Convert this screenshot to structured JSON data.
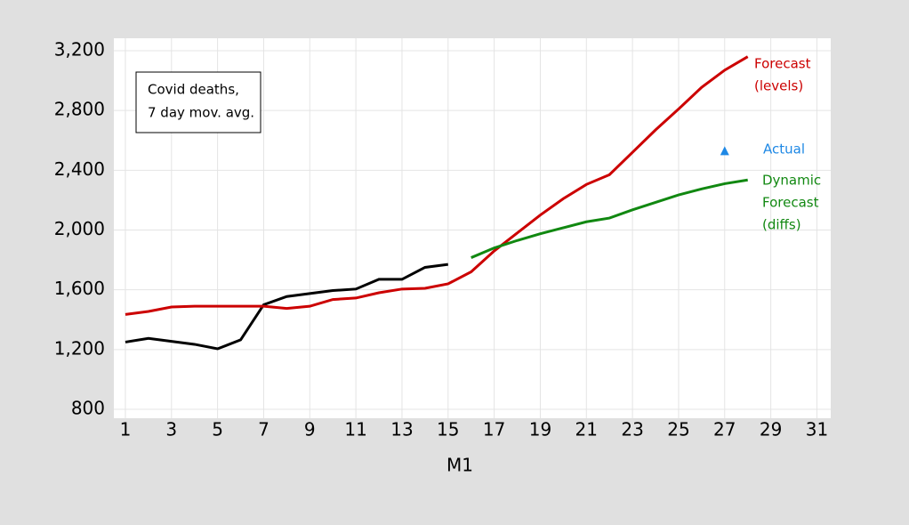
{
  "chart_data": {
    "type": "line",
    "xlabel": "M1",
    "annotation": [
      "Covid deaths,",
      "7 day mov. avg."
    ],
    "xlim": [
      0.5,
      31.6
    ],
    "ylim": [
      800,
      3200
    ],
    "xticks": [
      1,
      3,
      5,
      7,
      9,
      11,
      13,
      15,
      17,
      19,
      21,
      23,
      25,
      27,
      29,
      31
    ],
    "yticks": [
      800,
      {
        "value": 1200,
        "label": "1,200"
      },
      {
        "value": 1600,
        "label": "1,600"
      },
      {
        "value": 2000,
        "label": "2,000"
      },
      {
        "value": 2400,
        "label": "2,400"
      },
      {
        "value": 2800,
        "label": "2,800"
      },
      {
        "value": 3200,
        "label": "3,200"
      }
    ],
    "grid": true,
    "series": [
      {
        "color": "#000000",
        "kind": "line",
        "x": [
          1,
          2,
          3,
          4,
          5,
          6,
          7,
          8,
          9,
          10,
          11,
          12,
          13,
          14,
          15
        ],
        "values": [
          1250,
          1275,
          1255,
          1235,
          1205,
          1265,
          1500,
          1555,
          1575,
          1595,
          1605,
          1670,
          1670,
          1750,
          1770
        ]
      },
      {
        "name": [
          "Forecast",
          "(levels)"
        ],
        "color": "#cc0000",
        "kind": "line",
        "x": [
          1,
          2,
          3,
          4,
          5,
          6,
          7,
          8,
          9,
          10,
          11,
          12,
          13,
          14,
          15,
          16,
          17,
          18,
          19,
          20,
          21,
          22,
          23,
          24,
          25,
          26,
          27,
          28
        ],
        "values": [
          1435,
          1455,
          1485,
          1490,
          1490,
          1490,
          1490,
          1475,
          1490,
          1535,
          1545,
          1580,
          1605,
          1610,
          1640,
          1720,
          1860,
          1980,
          2100,
          2210,
          2305,
          2370,
          2520,
          2670,
          2810,
          2955,
          3070,
          3160
        ]
      },
      {
        "name": [
          "Actual"
        ],
        "color": "#1e88e5",
        "kind": "scatter",
        "x": [
          27
        ],
        "values": [
          2525
        ]
      },
      {
        "name": [
          "Dynamic",
          "Forecast",
          "(diffs)"
        ],
        "color": "#118811",
        "kind": "line",
        "x": [
          16,
          17,
          18,
          19,
          20,
          21,
          22,
          23,
          24,
          25,
          26,
          27,
          28
        ],
        "values": [
          1815,
          1880,
          1930,
          1975,
          2015,
          2055,
          2080,
          2135,
          2185,
          2235,
          2275,
          2310,
          2335
        ]
      }
    ]
  }
}
